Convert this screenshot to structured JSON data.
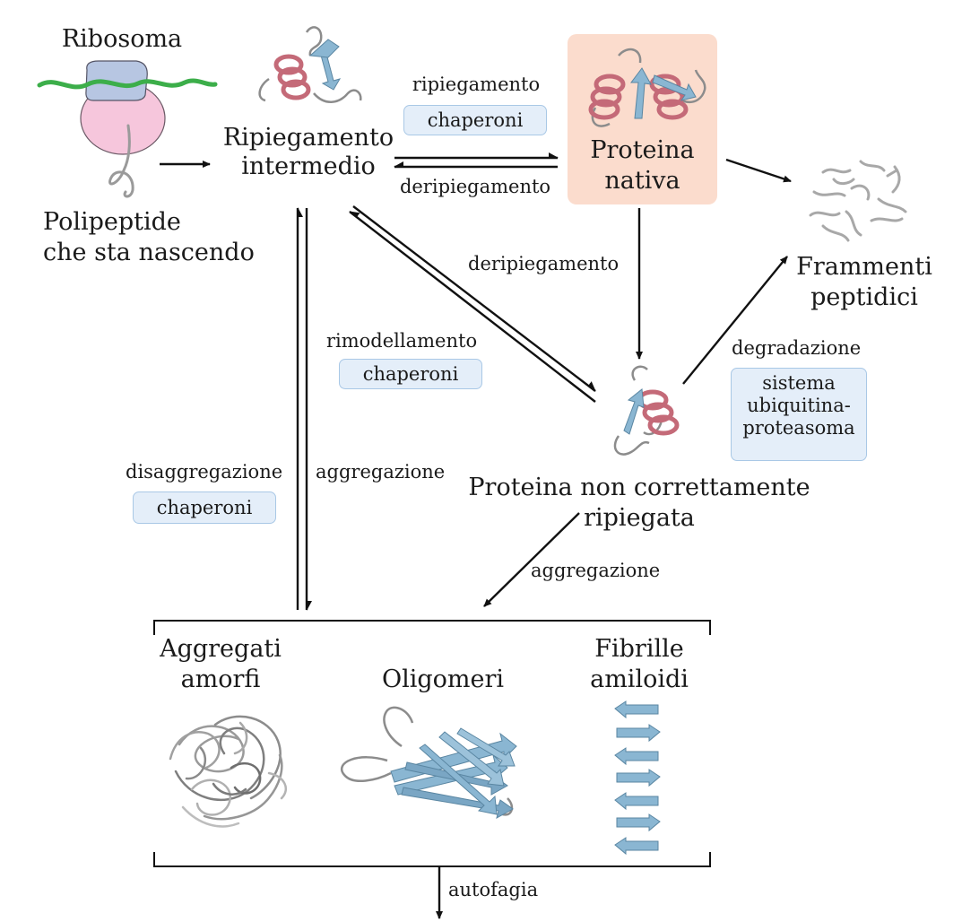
{
  "nodes": {
    "ribosome": "Ribosoma",
    "nascent_1": "Polipeptide",
    "nascent_2": "che sta nascendo",
    "intermediate_1": "Ripiegamento",
    "intermediate_2": "intermedio",
    "native_1": "Proteina",
    "native_2": "nativa",
    "fragments_1": "Frammenti",
    "fragments_2": "peptidici",
    "misfolded_1": "Proteina non correttamente",
    "misfolded_2": "ripiegata",
    "amorphous_1": "Aggregati",
    "amorphous_2": "amorfi",
    "oligomers": "Oligomeri",
    "fibrils_1": "Fibrille",
    "fibrils_2": "amiloidi"
  },
  "edges": {
    "folding": "ripiegamento",
    "folding_chaperones": "chaperoni",
    "unfolding_top": "deripiegamento",
    "unfolding_right": "deripiegamento",
    "remodeling": "rimodellamento",
    "remodeling_chaperones": "chaperoni",
    "disaggregation": "disaggregazione",
    "disaggregation_chaperones": "chaperoni",
    "aggregation_left": "aggregazione",
    "aggregation_bottom": "aggregazione",
    "degradation": "degradazione",
    "degradation_system_1": "sistema",
    "degradation_system_2": "ubiquitina-",
    "degradation_system_3": "proteasoma",
    "autophagy": "autofagia"
  },
  "colors": {
    "helix": "#c46a78",
    "strand": "#8ab6d2",
    "coil": "#8c8c8c",
    "chaperone_box": "#e4eef9",
    "native_box": "#fbdccd",
    "mrna": "#3cae4a",
    "ribosome_small": "#b7c6e2",
    "ribosome_large": "#f6c6dc"
  }
}
